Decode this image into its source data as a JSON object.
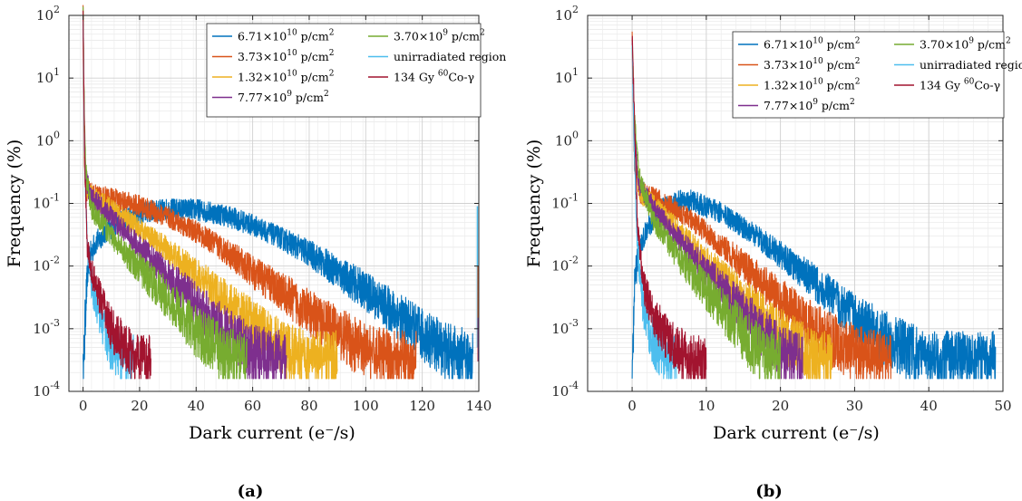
{
  "chart_data": [
    {
      "type": "line",
      "caption": "(a)",
      "xlabel": "Dark current (e⁻/s)",
      "ylabel": "Frequency (%)",
      "xlim": [
        -5,
        140
      ],
      "x_ticks": [
        0,
        20,
        40,
        60,
        80,
        100,
        120,
        140
      ],
      "y_scale": "log",
      "ylim": [
        0.0001,
        100
      ],
      "y_ticks": [
        {
          "base": "10",
          "exp": "-4"
        },
        {
          "base": "10",
          "exp": "-3"
        },
        {
          "base": "10",
          "exp": "-2"
        },
        {
          "base": "10",
          "exp": "-1"
        },
        {
          "base": "10",
          "exp": "0"
        },
        {
          "base": "10",
          "exp": "1"
        },
        {
          "base": "10",
          "exp": "2"
        }
      ],
      "grid": true,
      "legend_position": "top-right",
      "series": [
        {
          "id": "s1",
          "name": "6.71×10¹⁰ p/cm²",
          "legend": {
            "a": "6.71×10",
            "sup1": "10",
            "b": " p/cm",
            "sup2": "2"
          },
          "color": "#0072BD",
          "points": [
            [
              0,
              0.0001
            ],
            [
              1,
              0.003
            ],
            [
              2,
              0.012
            ],
            [
              4,
              0.022
            ],
            [
              8,
              0.035
            ],
            [
              15,
              0.06
            ],
            [
              20,
              0.07
            ],
            [
              30,
              0.08
            ],
            [
              40,
              0.08
            ],
            [
              50,
              0.065
            ],
            [
              60,
              0.045
            ],
            [
              70,
              0.028
            ],
            [
              80,
              0.016
            ],
            [
              90,
              0.008
            ],
            [
              100,
              0.004
            ],
            [
              110,
              0.0018
            ],
            [
              120,
              0.0008
            ],
            [
              130,
              0.0004
            ],
            [
              138,
              0.0003
            ]
          ],
          "noise": 0.35,
          "tail": 138
        },
        {
          "id": "s2",
          "name": "3.73×10¹⁰ p/cm²",
          "legend": {
            "a": "3.73×10",
            "sup1": "10",
            "b": " p/cm",
            "sup2": "2"
          },
          "color": "#D95319",
          "points": [
            [
              0,
              100
            ],
            [
              0.5,
              0.5
            ],
            [
              1,
              0.15
            ],
            [
              2,
              0.16
            ],
            [
              5,
              0.13
            ],
            [
              10,
              0.12
            ],
            [
              20,
              0.09
            ],
            [
              30,
              0.06
            ],
            [
              40,
              0.035
            ],
            [
              50,
              0.018
            ],
            [
              60,
              0.008
            ],
            [
              70,
              0.004
            ],
            [
              80,
              0.0018
            ],
            [
              90,
              0.0009
            ],
            [
              100,
              0.0004
            ],
            [
              110,
              0.0003
            ]
          ],
          "noise": 0.35,
          "tail": 118
        },
        {
          "id": "s3",
          "name": "1.32×10¹⁰ p/cm²",
          "legend": {
            "a": "1.32×10",
            "sup1": "10",
            "b": " p/cm",
            "sup2": "2"
          },
          "color": "#EDB120",
          "points": [
            [
              0,
              100
            ],
            [
              0.5,
              0.8
            ],
            [
              1,
              0.2
            ],
            [
              3,
              0.13
            ],
            [
              10,
              0.08
            ],
            [
              20,
              0.04
            ],
            [
              30,
              0.018
            ],
            [
              40,
              0.007
            ],
            [
              50,
              0.003
            ],
            [
              60,
              0.0012
            ],
            [
              70,
              0.0005
            ],
            [
              80,
              0.0003
            ]
          ],
          "noise": 0.35,
          "tail": 90
        },
        {
          "id": "s4",
          "name": "7.77×10⁹ p/cm²",
          "legend": {
            "a": "7.77×10",
            "sup1": "9",
            "b": " p/cm",
            "sup2": "2"
          },
          "color": "#7E2F8E",
          "points": [
            [
              0,
              100
            ],
            [
              0.5,
              1
            ],
            [
              1,
              0.25
            ],
            [
              3,
              0.12
            ],
            [
              10,
              0.06
            ],
            [
              20,
              0.02
            ],
            [
              30,
              0.007
            ],
            [
              40,
              0.0025
            ],
            [
              50,
              0.0009
            ],
            [
              60,
              0.0004
            ],
            [
              70,
              0.0003
            ]
          ],
          "noise": 0.35,
          "tail": 72
        },
        {
          "id": "s5",
          "name": "3.70×10⁹ p/cm²",
          "legend": {
            "a": "3.70×10",
            "sup1": "9",
            "b": " p/cm",
            "sup2": "2"
          },
          "color": "#77AC30",
          "points": [
            [
              0,
              100
            ],
            [
              0.5,
              2
            ],
            [
              1,
              0.3
            ],
            [
              3,
              0.08
            ],
            [
              10,
              0.03
            ],
            [
              20,
              0.009
            ],
            [
              30,
              0.003
            ],
            [
              40,
              0.0009
            ],
            [
              50,
              0.0004
            ],
            [
              55,
              0.0003
            ]
          ],
          "noise": 0.35,
          "tail": 58
        },
        {
          "id": "s6",
          "name": "unirradiated region",
          "legend": {
            "a": "unirradiated region",
            "sup1": "",
            "b": "",
            "sup2": ""
          },
          "color": "#4DBEEE",
          "points": [
            [
              0,
              100
            ],
            [
              0.3,
              5
            ],
            [
              0.7,
              0.3
            ],
            [
              1.5,
              0.02
            ],
            [
              3,
              0.005
            ],
            [
              6,
              0.0015
            ],
            [
              10,
              0.0005
            ],
            [
              14,
              0.0003
            ]
          ],
          "noise": 0.3,
          "tail": 18
        },
        {
          "id": "s7",
          "name": "134 Gy ⁶⁰Co-γ",
          "legend": {
            "a": "134 Gy ",
            "sup1": "60",
            "b": "Co-γ",
            "sup2": ""
          },
          "color": "#A2142F",
          "points": [
            [
              0,
              100
            ],
            [
              0.3,
              5
            ],
            [
              0.7,
              0.3
            ],
            [
              1.5,
              0.02
            ],
            [
              3,
              0.008
            ],
            [
              6,
              0.003
            ],
            [
              10,
              0.001
            ],
            [
              15,
              0.0005
            ],
            [
              20,
              0.0003
            ]
          ],
          "noise": 0.3,
          "tail": 24
        }
      ]
    },
    {
      "type": "line",
      "caption": "(b)",
      "xlabel": "Dark current (e⁻/s)",
      "ylabel": "Frequency (%)",
      "xlim": [
        -6,
        50
      ],
      "x_ticks": [
        0,
        10,
        20,
        30,
        40,
        50
      ],
      "y_scale": "log",
      "ylim": [
        0.0001,
        100
      ],
      "y_ticks": [
        {
          "base": "10",
          "exp": "-4"
        },
        {
          "base": "10",
          "exp": "-3"
        },
        {
          "base": "10",
          "exp": "-2"
        },
        {
          "base": "10",
          "exp": "-1"
        },
        {
          "base": "10",
          "exp": "0"
        },
        {
          "base": "10",
          "exp": "1"
        },
        {
          "base": "10",
          "exp": "2"
        }
      ],
      "grid": true,
      "legend_position": "top-right",
      "series": [
        {
          "id": "s1",
          "name": "6.71×10¹⁰ p/cm²",
          "legend": {
            "a": "6.71×10",
            "sup1": "10",
            "b": " p/cm",
            "sup2": "2"
          },
          "color": "#0072BD",
          "points": [
            [
              0,
              0.0001
            ],
            [
              0.3,
              0.005
            ],
            [
              1,
              0.02
            ],
            [
              2,
              0.04
            ],
            [
              4,
              0.08
            ],
            [
              6,
              0.11
            ],
            [
              8,
              0.11
            ],
            [
              12,
              0.07
            ],
            [
              16,
              0.035
            ],
            [
              20,
              0.015
            ],
            [
              25,
              0.005
            ],
            [
              30,
              0.0015
            ],
            [
              35,
              0.0006
            ],
            [
              40,
              0.0003
            ]
          ],
          "noise": 0.35,
          "tail": 49
        },
        {
          "id": "s2",
          "name": "3.73×10¹⁰ p/cm²",
          "legend": {
            "a": "3.73×10",
            "sup1": "10",
            "b": " p/cm",
            "sup2": "2"
          },
          "color": "#D95319",
          "points": [
            [
              0,
              45
            ],
            [
              0.3,
              0.5
            ],
            [
              1,
              0.15
            ],
            [
              3,
              0.12
            ],
            [
              6,
              0.08
            ],
            [
              10,
              0.035
            ],
            [
              15,
              0.01
            ],
            [
              20,
              0.003
            ],
            [
              25,
              0.0009
            ],
            [
              30,
              0.0004
            ],
            [
              33,
              0.0003
            ]
          ],
          "noise": 0.35,
          "tail": 35
        },
        {
          "id": "s3",
          "name": "1.32×10¹⁰ p/cm²",
          "legend": {
            "a": "1.32×10",
            "sup1": "10",
            "b": " p/cm",
            "sup2": "2"
          },
          "color": "#EDB120",
          "points": [
            [
              0,
              45
            ],
            [
              0.3,
              0.8
            ],
            [
              1,
              0.15
            ],
            [
              3,
              0.09
            ],
            [
              6,
              0.04
            ],
            [
              10,
              0.012
            ],
            [
              15,
              0.003
            ],
            [
              20,
              0.0008
            ],
            [
              25,
              0.0003
            ]
          ],
          "noise": 0.35,
          "tail": 27
        },
        {
          "id": "s4",
          "name": "7.77×10⁹ p/cm²",
          "legend": {
            "a": "7.77×10",
            "sup1": "9",
            "b": " p/cm",
            "sup2": "2"
          },
          "color": "#7E2F8E",
          "points": [
            [
              0,
              45
            ],
            [
              0.3,
              1
            ],
            [
              1,
              0.2
            ],
            [
              3,
              0.08
            ],
            [
              6,
              0.03
            ],
            [
              10,
              0.008
            ],
            [
              15,
              0.0018
            ],
            [
              20,
              0.0004
            ],
            [
              22,
              0.0003
            ]
          ],
          "noise": 0.35,
          "tail": 23
        },
        {
          "id": "s5",
          "name": "3.70×10⁹ p/cm²",
          "legend": {
            "a": "3.70×10",
            "sup1": "9",
            "b": " p/cm",
            "sup2": "2"
          },
          "color": "#77AC30",
          "points": [
            [
              0,
              45
            ],
            [
              0.3,
              2
            ],
            [
              1,
              0.25
            ],
            [
              3,
              0.05
            ],
            [
              6,
              0.015
            ],
            [
              10,
              0.004
            ],
            [
              15,
              0.0008
            ],
            [
              18,
              0.0003
            ]
          ],
          "noise": 0.35,
          "tail": 20
        },
        {
          "id": "s6",
          "name": "unirradiated region",
          "legend": {
            "a": "unirradiated region",
            "sup1": "",
            "b": "",
            "sup2": ""
          },
          "color": "#4DBEEE",
          "points": [
            [
              0,
              45
            ],
            [
              0.3,
              0.5
            ],
            [
              0.7,
              0.02
            ],
            [
              1.5,
              0.002
            ],
            [
              3,
              0.0005
            ],
            [
              5,
              0.0003
            ]
          ],
          "noise": 0.3,
          "tail": 6
        },
        {
          "id": "s7",
          "name": "134 Gy ⁶⁰Co-γ",
          "legend": {
            "a": "134 Gy ",
            "sup1": "60",
            "b": "Co-γ",
            "sup2": ""
          },
          "color": "#A2142F",
          "points": [
            [
              0,
              45
            ],
            [
              0.3,
              3
            ],
            [
              0.7,
              0.05
            ],
            [
              1.5,
              0.005
            ],
            [
              3,
              0.0015
            ],
            [
              5,
              0.0006
            ],
            [
              8,
              0.0003
            ]
          ],
          "noise": 0.3,
          "tail": 10
        }
      ]
    }
  ]
}
